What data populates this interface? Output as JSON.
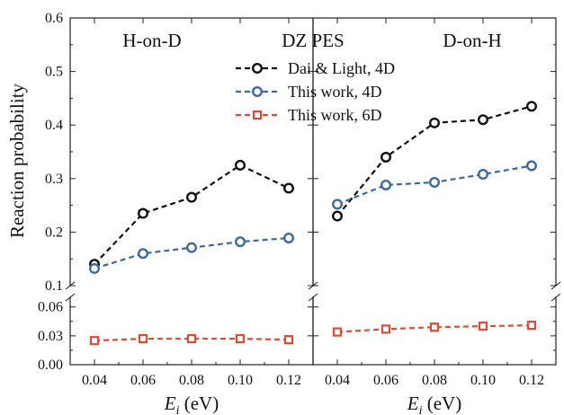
{
  "chart_data": {
    "type": "line",
    "title": "DZ PES",
    "ylabel": "Reaction probability",
    "xlabel_var": "E",
    "xlabel_sub": "i",
    "xlabel_unit": " (eV)",
    "x": [
      0.04,
      0.06,
      0.08,
      0.1,
      0.12
    ],
    "x_tick_labels": [
      "0.04",
      "0.06",
      "0.08",
      "0.10",
      "0.12"
    ],
    "xlim": [
      0.03,
      0.13
    ],
    "ylim_upper": [
      0.1,
      0.6
    ],
    "yticks_upper": [
      "0.1",
      "0.2",
      "0.3",
      "0.4",
      "0.5",
      "0.6"
    ],
    "ylim_lower": [
      0.0,
      0.07
    ],
    "yticks_lower": [
      "0.00",
      "0.03",
      "0.06"
    ],
    "axis_break": true,
    "legend_position": "top-center",
    "panels": [
      {
        "label": "H-on-D",
        "series": [
          {
            "name": "Dai & Light, 4D",
            "color": "#111111",
            "marker": "circle",
            "values": [
              0.14,
              0.235,
              0.265,
              0.325,
              0.282
            ]
          },
          {
            "name": "This work, 4D",
            "color": "#3d6a99",
            "marker": "circle",
            "values": [
              0.132,
              0.16,
              0.171,
              0.182,
              0.189
            ]
          },
          {
            "name": "This work, 6D",
            "color": "#e04a35",
            "marker": "square",
            "values": [
              0.025,
              0.027,
              0.027,
              0.027,
              0.026
            ]
          }
        ]
      },
      {
        "label": "D-on-H",
        "series": [
          {
            "name": "Dai & Light, 4D",
            "color": "#111111",
            "marker": "circle",
            "values": [
              0.23,
              0.34,
              0.404,
              0.41,
              0.435
            ]
          },
          {
            "name": "This work, 4D",
            "color": "#3d6a99",
            "marker": "circle",
            "values": [
              0.252,
              0.288,
              0.293,
              0.308,
              0.324
            ]
          },
          {
            "name": "This work, 6D",
            "color": "#e04a35",
            "marker": "square",
            "values": [
              0.034,
              0.037,
              0.039,
              0.04,
              0.041
            ]
          }
        ]
      }
    ],
    "legend": [
      {
        "name": "Dai & Light, 4D",
        "color": "#111111",
        "marker": "circle"
      },
      {
        "name": "This work, 4D",
        "color": "#3d6a99",
        "marker": "circle"
      },
      {
        "name": "This work, 6D",
        "color": "#e04a35",
        "marker": "square"
      }
    ]
  }
}
